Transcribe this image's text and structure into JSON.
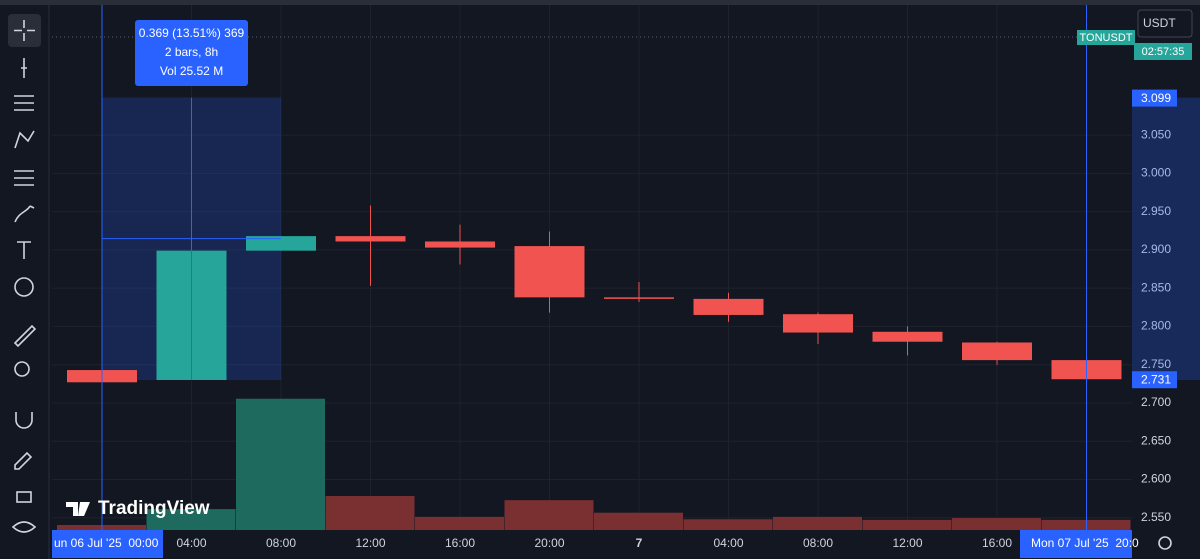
{
  "toolbar": {
    "currency": "USDT",
    "symbol": "TONUSDT",
    "countdown": "02:57:35",
    "logo": "TradingView"
  },
  "measure": {
    "line1": "0.369 (13.51%) 369",
    "line2": "2 bars, 8h",
    "line3": "Vol 25.52 M",
    "start_label": "un 06 Jul '25  00:00",
    "end_label": "Mon 07 Jul '25  20:0"
  },
  "chart_data": {
    "type": "candlestick",
    "categories": [
      null,
      "04:00",
      "08:00",
      "12:00",
      "16:00",
      "20:00",
      "7",
      "04:00",
      "08:00",
      "12:00",
      "16:00",
      null
    ],
    "open": [
      2.743,
      2.73,
      2.899,
      2.918,
      2.911,
      2.905,
      2.838,
      2.836,
      2.816,
      2.793,
      2.779,
      2.756
    ],
    "high": [
      2.745,
      2.899,
      2.918,
      2.958,
      2.933,
      2.924,
      2.858,
      2.844,
      2.818,
      2.8,
      2.78,
      2.757
    ],
    "low": [
      2.727,
      2.73,
      2.899,
      2.853,
      2.881,
      2.818,
      2.832,
      2.806,
      2.777,
      2.762,
      2.75,
      2.731
    ],
    "close": [
      2.727,
      2.899,
      2.918,
      2.911,
      2.903,
      2.838,
      2.836,
      2.815,
      2.792,
      2.78,
      2.756,
      2.731
    ],
    "up_color": "#26a69a",
    "down_color": "#f05350",
    "volume": {
      "values": [
        0.84,
        3.5,
        22.0,
        5.7,
        2.2,
        5.0,
        2.9,
        1.8,
        2.2,
        1.7,
        2.0,
        1.7
      ],
      "up_color": "#1e6a5f",
      "down_color": "#7a2f31"
    },
    "volume_ylim": [
      0,
      30
    ],
    "ylim": [
      2.534,
      3.22
    ],
    "yticks": [
      {
        "value": 3.05,
        "label": "3.050"
      },
      {
        "value": 3.0,
        "label": "3.000"
      },
      {
        "value": 2.95,
        "label": "2.950"
      },
      {
        "value": 2.9,
        "label": "2.900"
      },
      {
        "value": 2.85,
        "label": "2.850"
      },
      {
        "value": 2.8,
        "label": "2.800"
      },
      {
        "value": 2.75,
        "label": "2.750"
      },
      {
        "value": 2.7,
        "label": "2.700"
      },
      {
        "value": 2.65,
        "label": "2.650"
      },
      {
        "value": 2.6,
        "label": "2.600"
      },
      {
        "value": 2.55,
        "label": "2.550"
      }
    ],
    "range_top": 3.099,
    "last_price": 2.731,
    "grid": true
  }
}
